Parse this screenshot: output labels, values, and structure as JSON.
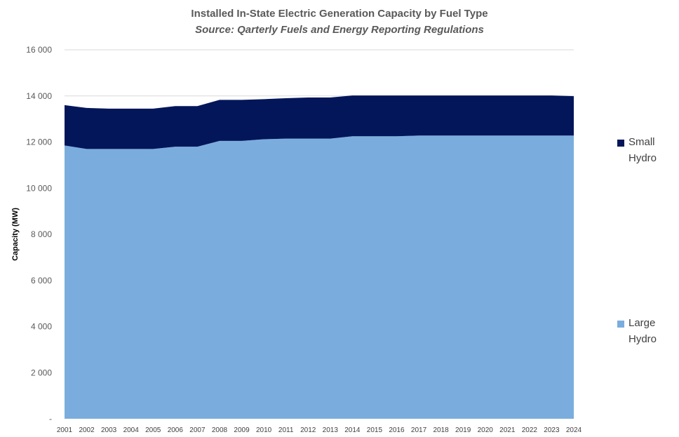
{
  "chart_data": {
    "type": "area",
    "stacked": true,
    "title": "Installed In-State Electric Generation Capacity by Fuel Type",
    "subtitle": "Source: Qarterly Fuels and Energy Reporting Regulations",
    "xlabel": "",
    "ylabel": "Capacity (MW)",
    "ylim": [
      0,
      16000
    ],
    "yticks": [
      0,
      2000,
      4000,
      6000,
      8000,
      10000,
      12000,
      14000,
      16000
    ],
    "ytick_labels": [
      "-",
      "2 000",
      "4 000",
      "6 000",
      "8 000",
      "10 000",
      "12 000",
      "14 000",
      "16 000"
    ],
    "grid": true,
    "legend_position": "right",
    "categories": [
      "2001",
      "2002",
      "2003",
      "2004",
      "2005",
      "2006",
      "2007",
      "2008",
      "2009",
      "2010",
      "2011",
      "2012",
      "2013",
      "2014",
      "2015",
      "2016",
      "2017",
      "2018",
      "2019",
      "2020",
      "2021",
      "2022",
      "2023",
      "2024"
    ],
    "series": [
      {
        "name": "Large Hydro",
        "color": "#7aaddd",
        "values": [
          11850,
          11700,
          11700,
          11700,
          11700,
          11800,
          11800,
          12050,
          12050,
          12120,
          12150,
          12150,
          12150,
          12250,
          12250,
          12250,
          12280,
          12280,
          12280,
          12280,
          12280,
          12280,
          12280,
          12280
        ]
      },
      {
        "name": "Small Hydro",
        "color": "#03165a",
        "values": [
          1750,
          1780,
          1750,
          1750,
          1750,
          1760,
          1760,
          1780,
          1780,
          1740,
          1750,
          1780,
          1780,
          1770,
          1770,
          1770,
          1740,
          1740,
          1740,
          1740,
          1740,
          1740,
          1740,
          1710
        ]
      }
    ]
  }
}
